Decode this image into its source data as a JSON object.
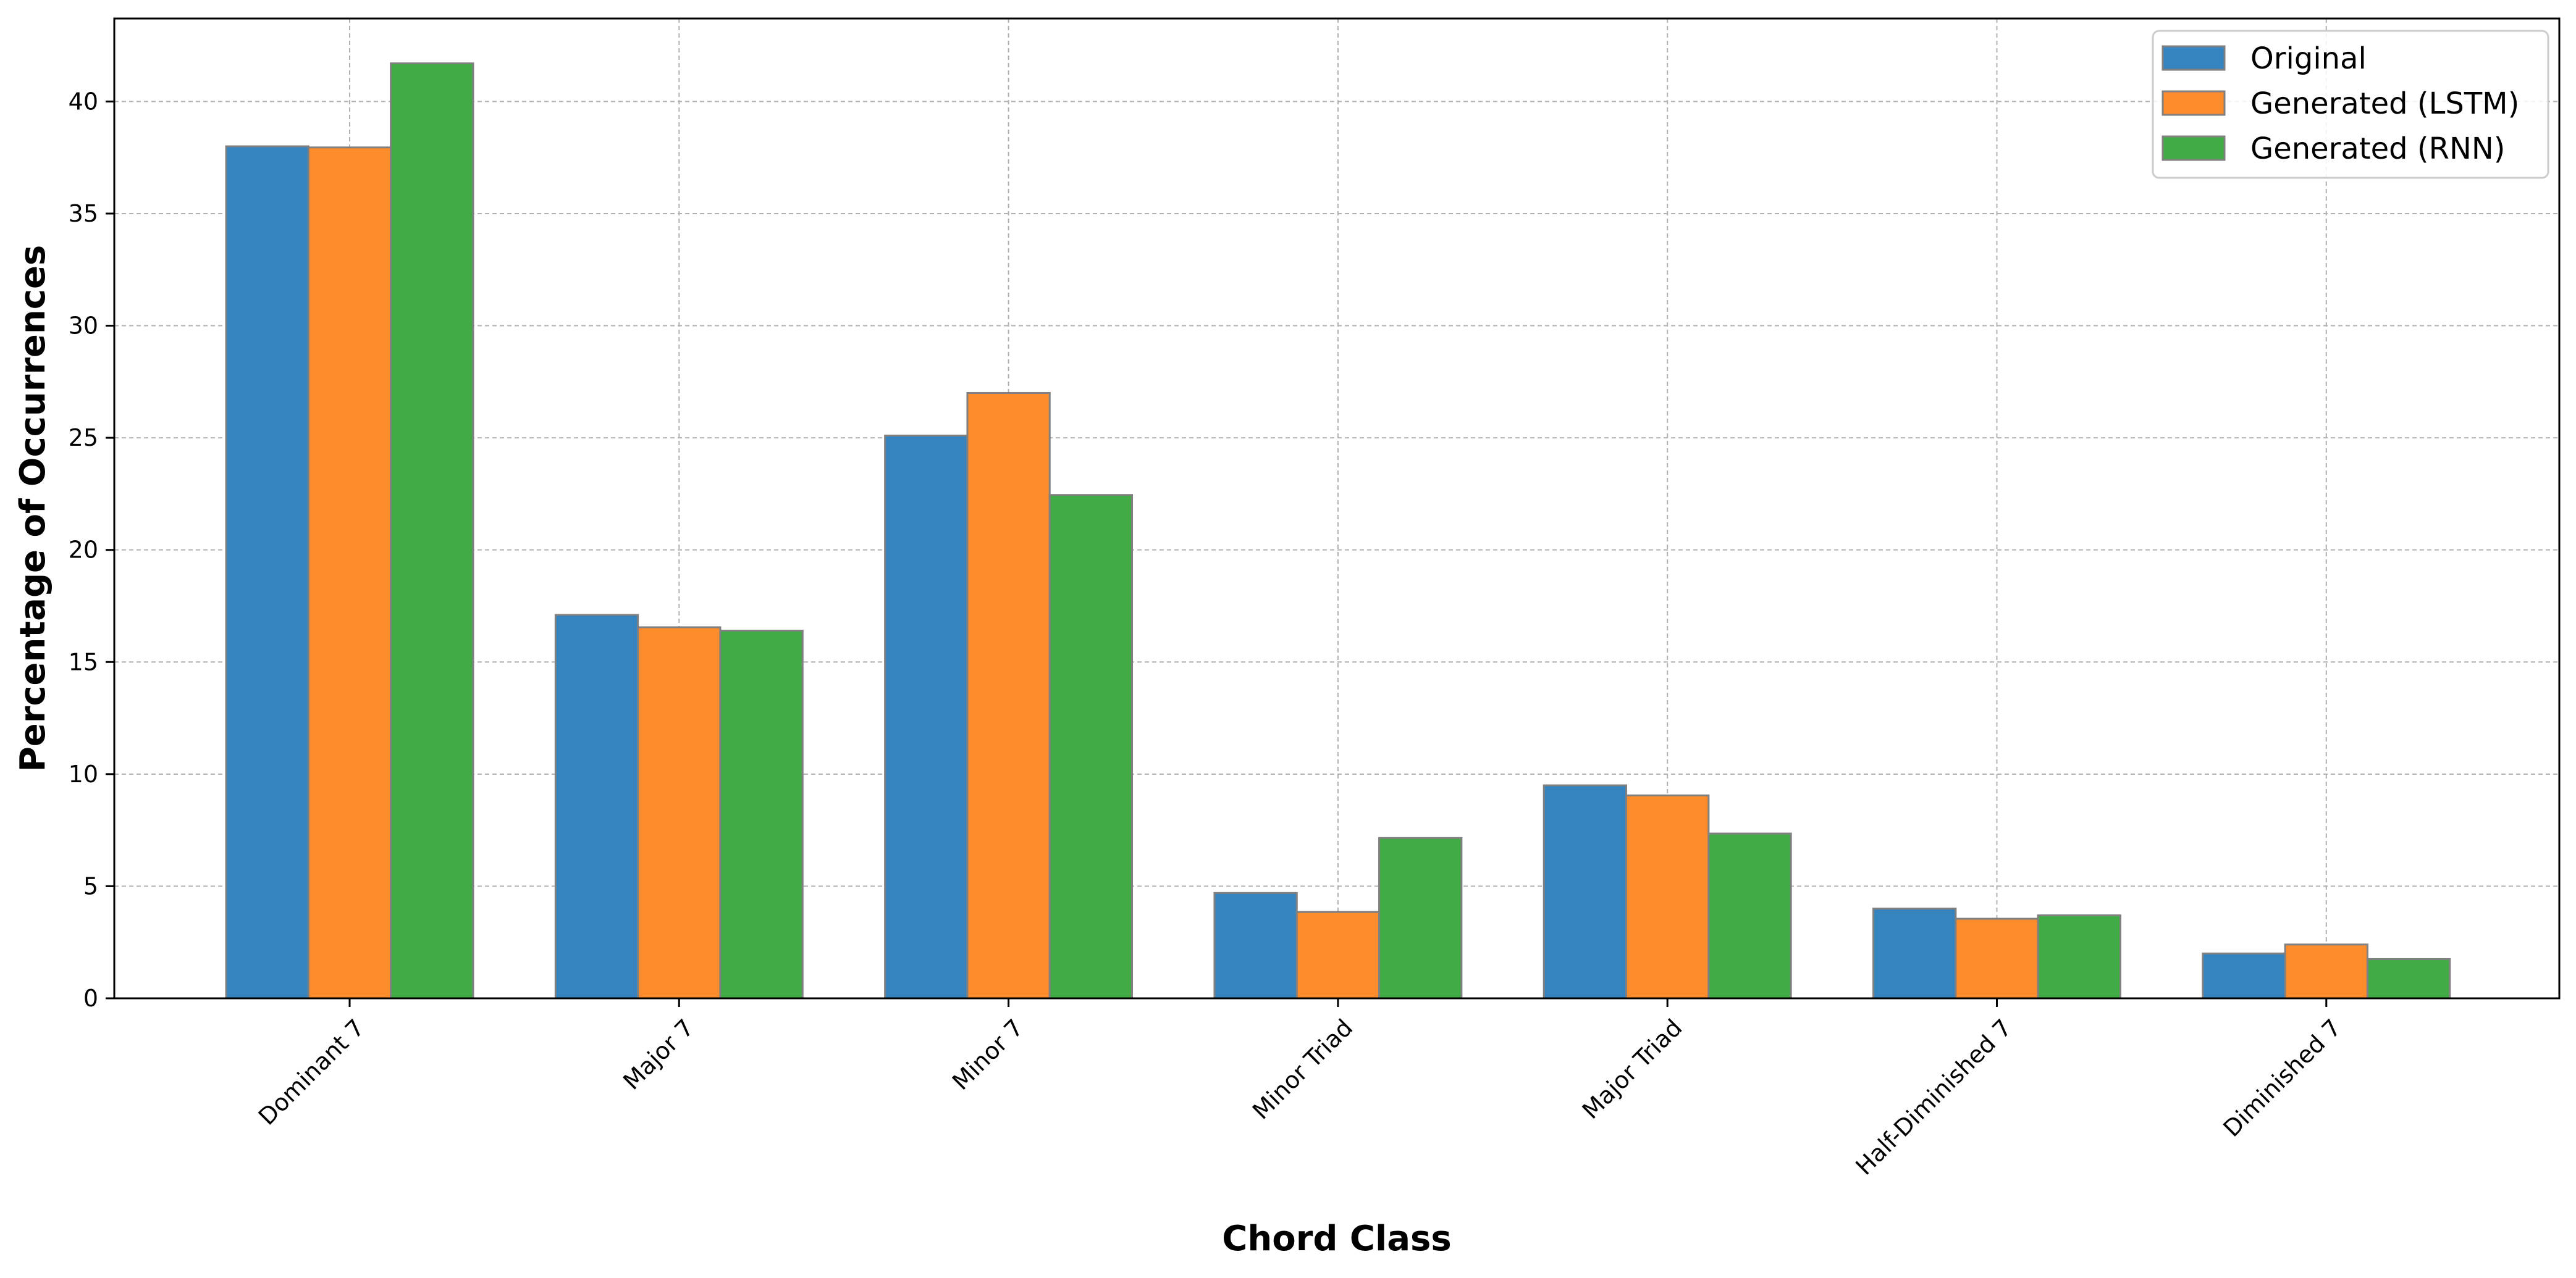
{
  "chart_data": {
    "type": "bar",
    "xlabel": "Chord Class",
    "ylabel": "Percentage of Occurrences",
    "categories": [
      "Dominant 7",
      "Major 7",
      "Minor 7",
      "Minor Triad",
      "Major Triad",
      "Half-Diminished 7",
      "Diminished 7"
    ],
    "series": [
      {
        "name": "Original",
        "color": "#3584bf",
        "values": [
          38.0,
          17.1,
          25.1,
          4.7,
          9.5,
          4.0,
          2.0
        ]
      },
      {
        "name": "Generated (LSTM)",
        "color": "#fd8d2c",
        "values": [
          37.95,
          16.55,
          27.0,
          3.85,
          9.05,
          3.55,
          2.4
        ]
      },
      {
        "name": "Generated (RNN)",
        "color": "#41ab45",
        "values": [
          41.7,
          16.4,
          22.45,
          7.15,
          7.35,
          3.7,
          1.75
        ]
      }
    ],
    "ylim": [
      0,
      43.7
    ],
    "yticks": [
      0,
      5,
      10,
      15,
      20,
      25,
      30,
      35,
      40
    ],
    "grid": true,
    "legend_position": "top-right"
  }
}
